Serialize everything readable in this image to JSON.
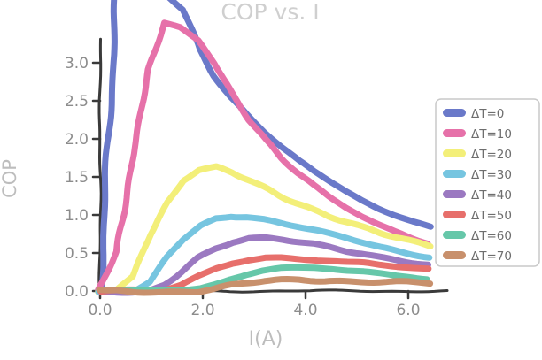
{
  "title": "COP vs. I",
  "colors": {
    "background": "#ffffff",
    "axis": "#3a3a3a",
    "title_text": "#cfcfcf",
    "axis_label_text": "#bdbdbd",
    "tick_text": "#8c8c8c",
    "legend_text": "#6e6e6e",
    "legend_border": "#c9c9c9"
  },
  "chart_data": {
    "type": "line",
    "style": "xkcd-handdrawn",
    "title": "COP vs. I",
    "xlabel": "I(A)",
    "ylabel": "COP",
    "xlim": [
      0,
      6.6
    ],
    "ylim": [
      0,
      3.3
    ],
    "xticks": [
      0.0,
      2.0,
      4.0,
      6.0
    ],
    "yticks": [
      0.0,
      0.5,
      1.0,
      1.5,
      2.0,
      2.5,
      3.0
    ],
    "grid": false,
    "legend_position": "right",
    "x": [
      0,
      0.32,
      0.64,
      0.96,
      1.28,
      1.6,
      1.92,
      2.24,
      2.56,
      2.88,
      3.2,
      3.52,
      3.84,
      4.16,
      4.48,
      4.8,
      5.12,
      5.44,
      5.76,
      6.08,
      6.4
    ],
    "series": [
      {
        "name": "ΔT=0",
        "color": "#6a79c9",
        "values": [
          0,
          9,
          6.5,
          5.2,
          4.3,
          3.7,
          3.2,
          2.85,
          2.55,
          2.3,
          2.08,
          1.88,
          1.7,
          1.55,
          1.42,
          1.3,
          1.19,
          1.09,
          1.0,
          0.92,
          0.85
        ]
      },
      {
        "name": "ΔT=10",
        "color": "#e671a9",
        "values": [
          0,
          0.5,
          1.9,
          2.9,
          3.5,
          3.45,
          3.3,
          3.0,
          2.6,
          2.27,
          1.98,
          1.74,
          1.54,
          1.37,
          1.22,
          1.09,
          0.98,
          0.88,
          0.79,
          0.71,
          0.65
        ]
      },
      {
        "name": "ΔT=20",
        "color": "#f3ef79",
        "values": [
          0,
          0,
          0.18,
          0.72,
          1.15,
          1.45,
          1.6,
          1.64,
          1.58,
          1.49,
          1.38,
          1.27,
          1.17,
          1.07,
          0.98,
          0.9,
          0.82,
          0.75,
          0.69,
          0.63,
          0.58
        ]
      },
      {
        "name": "ΔT=30",
        "color": "#76c5e0",
        "values": [
          0,
          0,
          0,
          0.12,
          0.42,
          0.67,
          0.85,
          0.96,
          1.0,
          0.99,
          0.95,
          0.9,
          0.85,
          0.79,
          0.73,
          0.68,
          0.63,
          0.58,
          0.54,
          0.5,
          0.46
        ]
      },
      {
        "name": "ΔT=40",
        "color": "#9b79c1",
        "values": [
          0,
          0,
          0,
          0,
          0.1,
          0.27,
          0.44,
          0.56,
          0.64,
          0.68,
          0.68,
          0.66,
          0.63,
          0.6,
          0.56,
          0.52,
          0.49,
          0.45,
          0.42,
          0.39,
          0.36
        ]
      },
      {
        "name": "ΔT=50",
        "color": "#e76f6b",
        "values": [
          0,
          0,
          0,
          0,
          0,
          0.06,
          0.18,
          0.29,
          0.37,
          0.42,
          0.45,
          0.45,
          0.44,
          0.43,
          0.41,
          0.38,
          0.36,
          0.33,
          0.31,
          0.29,
          0.27
        ]
      },
      {
        "name": "ΔT=60",
        "color": "#66c7a9",
        "values": [
          0,
          0,
          0,
          0,
          0,
          0,
          0.04,
          0.11,
          0.18,
          0.23,
          0.27,
          0.29,
          0.29,
          0.29,
          0.28,
          0.26,
          0.25,
          0.23,
          0.21,
          0.2,
          0.18
        ]
      },
      {
        "name": "ΔT=70",
        "color": "#c8906c",
        "values": [
          0,
          0,
          0,
          0,
          0,
          0,
          0,
          0.02,
          0.06,
          0.09,
          0.12,
          0.14,
          0.15,
          0.15,
          0.15,
          0.14,
          0.13,
          0.12,
          0.11,
          0.1,
          0.09
        ]
      }
    ]
  }
}
